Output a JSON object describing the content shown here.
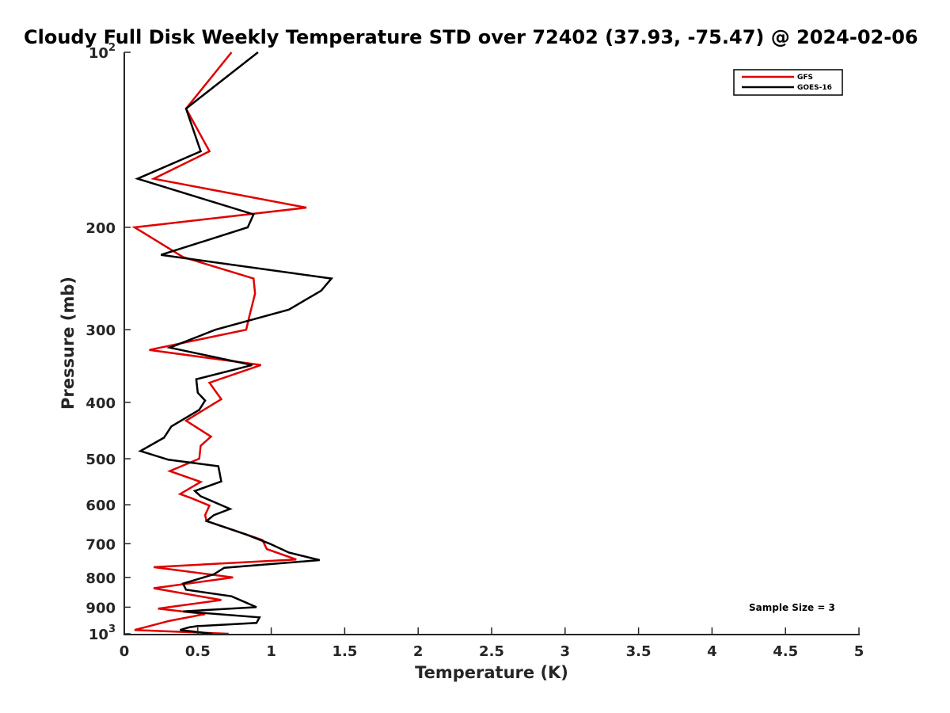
{
  "chart_data": {
    "type": "line",
    "title": "Cloudy Full Disk Weekly Temperature STD over 72402 (37.93, -75.47) @ 2024-02-06",
    "xlabel": "Temperature (K)",
    "ylabel": "Pressure (mb)",
    "xlim": [
      0,
      5
    ],
    "ylim": [
      100,
      1000
    ],
    "y_scale": "log",
    "y_reversed": true,
    "x_ticks": [
      "0",
      "0.5",
      "1",
      "1.5",
      "2",
      "2.5",
      "3",
      "3.5",
      "4",
      "4.5",
      "5"
    ],
    "y_ticks": [
      {
        "value": 100,
        "label": "10",
        "sup": "2"
      },
      {
        "value": 200,
        "label": "200",
        "sup": ""
      },
      {
        "value": 300,
        "label": "300",
        "sup": ""
      },
      {
        "value": 400,
        "label": "400",
        "sup": ""
      },
      {
        "value": 500,
        "label": "500",
        "sup": ""
      },
      {
        "value": 600,
        "label": "600",
        "sup": ""
      },
      {
        "value": 700,
        "label": "700",
        "sup": ""
      },
      {
        "value": 800,
        "label": "800",
        "sup": ""
      },
      {
        "value": 900,
        "label": "900",
        "sup": ""
      },
      {
        "value": 1000,
        "label": "10",
        "sup": "3"
      }
    ],
    "grid": false,
    "legend_position": "top-right",
    "annotation": "Sample Size = 3",
    "series": [
      {
        "name": "GFS",
        "color": "#e00000",
        "points": [
          [
            0.73,
            100
          ],
          [
            0.42,
            125
          ],
          [
            0.58,
            148
          ],
          [
            0.2,
            165
          ],
          [
            1.24,
            185
          ],
          [
            0.07,
            200
          ],
          [
            0.4,
            225
          ],
          [
            0.88,
            245
          ],
          [
            0.89,
            260
          ],
          [
            0.85,
            285
          ],
          [
            0.83,
            300
          ],
          [
            0.17,
            325
          ],
          [
            0.93,
            345
          ],
          [
            0.58,
            370
          ],
          [
            0.66,
            395
          ],
          [
            0.42,
            430
          ],
          [
            0.59,
            458
          ],
          [
            0.52,
            475
          ],
          [
            0.51,
            500
          ],
          [
            0.31,
            525
          ],
          [
            0.52,
            548
          ],
          [
            0.38,
            575
          ],
          [
            0.46,
            585
          ],
          [
            0.58,
            602
          ],
          [
            0.55,
            625
          ],
          [
            0.56,
            640
          ],
          [
            0.94,
            690
          ],
          [
            0.97,
            715
          ],
          [
            1.17,
            745
          ],
          [
            0.2,
            768
          ],
          [
            0.74,
            800
          ],
          [
            0.2,
            835
          ],
          [
            0.66,
            875
          ],
          [
            0.23,
            905
          ],
          [
            0.55,
            925
          ],
          [
            0.31,
            950
          ],
          [
            0.07,
            985
          ],
          [
            0.71,
            1000
          ]
        ]
      },
      {
        "name": "GOES-16",
        "color": "#000000",
        "points": [
          [
            0.91,
            100
          ],
          [
            0.42,
            125
          ],
          [
            0.52,
            148
          ],
          [
            0.09,
            165
          ],
          [
            0.88,
            190
          ],
          [
            0.84,
            200
          ],
          [
            0.25,
            223
          ],
          [
            1.41,
            245
          ],
          [
            1.34,
            257
          ],
          [
            1.12,
            277
          ],
          [
            0.62,
            300
          ],
          [
            0.31,
            322
          ],
          [
            0.87,
            345
          ],
          [
            0.49,
            365
          ],
          [
            0.5,
            385
          ],
          [
            0.55,
            397
          ],
          [
            0.51,
            412
          ],
          [
            0.32,
            440
          ],
          [
            0.27,
            460
          ],
          [
            0.11,
            485
          ],
          [
            0.3,
            502
          ],
          [
            0.64,
            515
          ],
          [
            0.66,
            547
          ],
          [
            0.48,
            568
          ],
          [
            0.52,
            580
          ],
          [
            0.72,
            610
          ],
          [
            0.61,
            625
          ],
          [
            0.56,
            640
          ],
          [
            0.83,
            675
          ],
          [
            0.99,
            700
          ],
          [
            1.12,
            725
          ],
          [
            1.33,
            747
          ],
          [
            0.68,
            770
          ],
          [
            0.61,
            790
          ],
          [
            0.4,
            820
          ],
          [
            0.42,
            840
          ],
          [
            0.73,
            862
          ],
          [
            0.9,
            900
          ],
          [
            0.4,
            915
          ],
          [
            0.92,
            937
          ],
          [
            0.9,
            958
          ],
          [
            0.5,
            970
          ],
          [
            0.44,
            975
          ],
          [
            0.38,
            985
          ],
          [
            0.6,
            1000
          ]
        ]
      }
    ]
  }
}
